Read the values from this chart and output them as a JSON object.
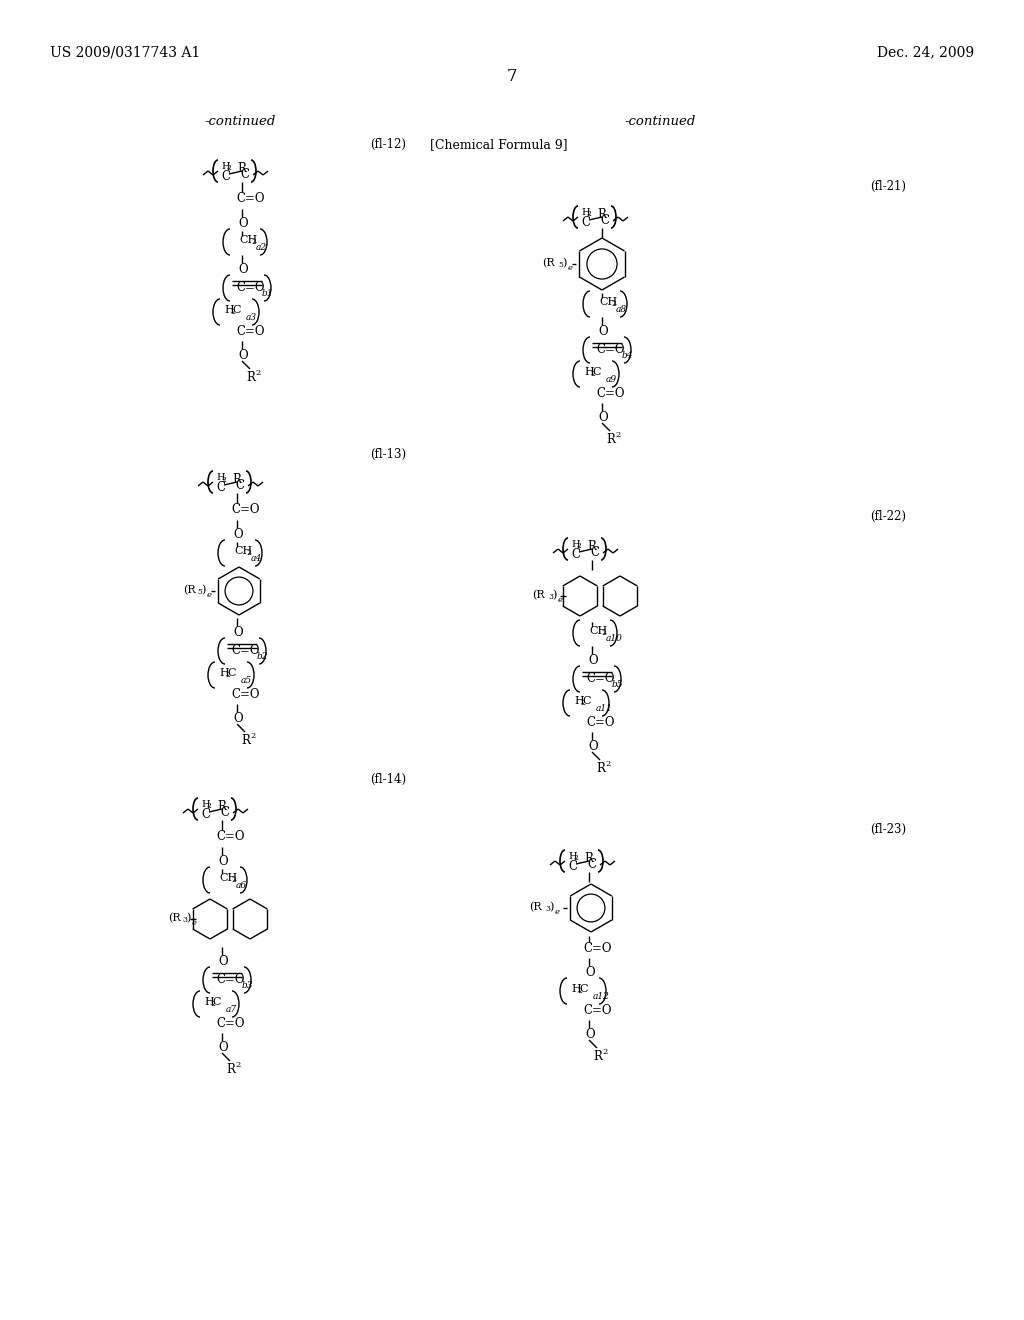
{
  "page_number": "7",
  "header_left": "US 2009/0317743 A1",
  "header_right": "Dec. 24, 2009",
  "continued_left": "-continued",
  "continued_right": "-continued",
  "chemical_formula_label": "[Chemical Formula 9]",
  "formula_labels": [
    "(fl-12)",
    "(fl-13)",
    "(fl-14)",
    "(fl-21)",
    "(fl-22)",
    "(fl-23)"
  ],
  "background_color": "#ffffff"
}
